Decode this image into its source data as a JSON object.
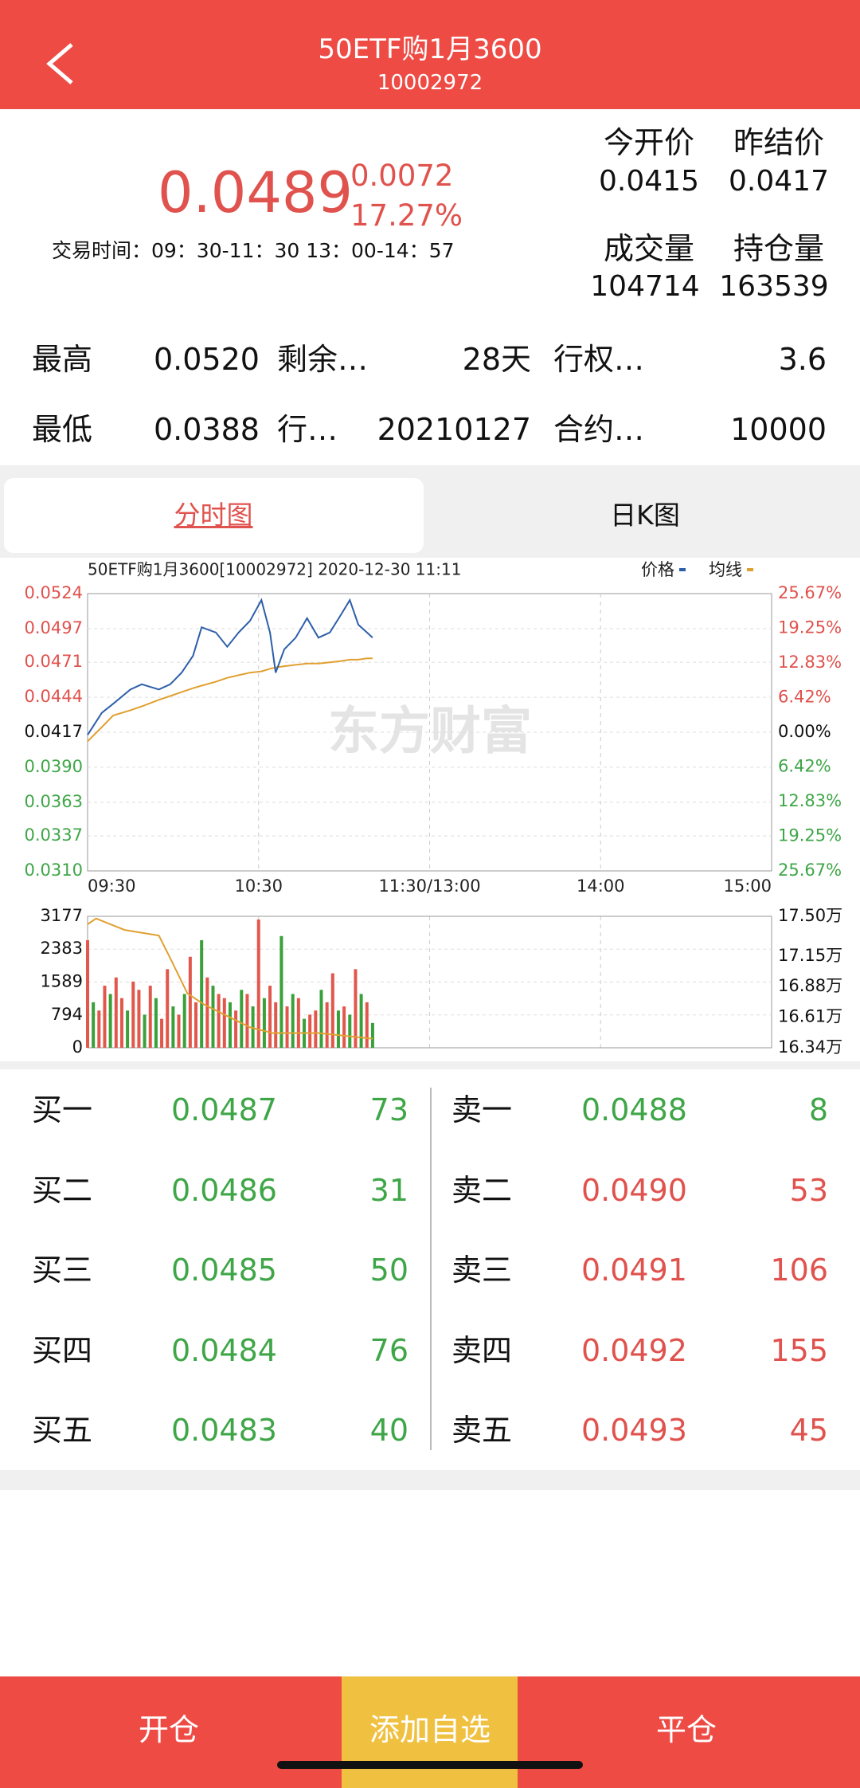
{
  "header": {
    "title": "50ETF购1月3600",
    "code": "10002972"
  },
  "quote": {
    "price": "0.0489",
    "change": "0.0072",
    "change_pct": "17.27%",
    "trade_time": "交易时间：09：30-11：30 13：00-14：57",
    "open_label": "今开价",
    "open": "0.0415",
    "prev_label": "昨结价",
    "prev": "0.0417",
    "volume_label": "成交量",
    "volume": "104714",
    "oi_label": "持仓量",
    "oi": "163539"
  },
  "stats": {
    "rows": [
      [
        "最高",
        "0.0520",
        "剩余…",
        "28天",
        "行权…",
        "3.6"
      ],
      [
        "最低",
        "0.0388",
        "行…",
        "20210127",
        "合约…",
        "10000"
      ]
    ]
  },
  "tabs": [
    "分时图",
    "日K图"
  ],
  "chart_data": [
    {
      "type": "line",
      "title": "50ETF购1月3600[10002972] 2020-12-30 11:11",
      "watermark": "东方财富",
      "xlim": [
        0,
        240
      ],
      "xticks": [
        {
          "value": 0,
          "label": "09:30"
        },
        {
          "value": 60,
          "label": "10:30"
        },
        {
          "value": 120,
          "label": "11:30/13:00"
        },
        {
          "value": 180,
          "label": "14:00"
        },
        {
          "value": 240,
          "label": "15:00"
        }
      ],
      "x": [
        0,
        5,
        9,
        15,
        19,
        25,
        29,
        33,
        37,
        40,
        45,
        49,
        53,
        57,
        61,
        64,
        66,
        69,
        73,
        77,
        81,
        85,
        89,
        92,
        95,
        98,
        100
      ],
      "series": [
        {
          "name": "价格",
          "color": "#2d5fa8",
          "values": [
            0.0415,
            0.0432,
            0.0439,
            0.045,
            0.0454,
            0.045,
            0.0454,
            0.0463,
            0.0476,
            0.0498,
            0.0494,
            0.0483,
            0.0494,
            0.0503,
            0.0519,
            0.0494,
            0.0463,
            0.0481,
            0.049,
            0.0505,
            0.049,
            0.0494,
            0.0508,
            0.0519,
            0.05,
            0.0494,
            0.049
          ]
        },
        {
          "name": "均线",
          "color": "#e0a030",
          "values": [
            0.041,
            0.0421,
            0.043,
            0.0434,
            0.0437,
            0.0442,
            0.0445,
            0.0448,
            0.0451,
            0.0453,
            0.0456,
            0.0459,
            0.0461,
            0.0463,
            0.0464,
            0.0466,
            0.0467,
            0.0468,
            0.0469,
            0.047,
            0.047,
            0.0471,
            0.0472,
            0.0473,
            0.0473,
            0.0474,
            0.0474
          ]
        }
      ],
      "ylim": [
        0.031,
        0.0524
      ],
      "yticks": [
        0.0524,
        0.0497,
        0.0471,
        0.0444,
        0.0417,
        {
          "value": 0.039,
          "label": "0.0390"
        },
        0.0363,
        0.0337,
        {
          "value": 0.031,
          "label": "0.0310"
        }
      ],
      "y2lim": [
        -25.67,
        25.67
      ],
      "y2ticks": [
        {
          "value": 25.67,
          "label": "25.67%"
        },
        {
          "value": 19.25,
          "label": "19.25%"
        },
        {
          "value": 12.83,
          "label": "12.83%"
        },
        {
          "value": 6.42,
          "label": "6.42%"
        },
        {
          "value": 0,
          "label": "0.00%"
        },
        {
          "value": -6.42,
          "label": "6.42%"
        },
        {
          "value": -12.83,
          "label": "12.83%"
        },
        {
          "value": -19.25,
          "label": "19.25%"
        },
        {
          "value": -25.67,
          "label": "25.67%"
        }
      ],
      "grid": true
    },
    {
      "type": "bar",
      "xlim": [
        0,
        240
      ],
      "x": [
        0,
        2,
        4,
        6,
        8,
        10,
        12,
        14,
        16,
        18,
        20,
        22,
        24,
        26,
        28,
        30,
        32,
        34,
        36,
        38,
        40,
        42,
        44,
        46,
        48,
        50,
        52,
        54,
        56,
        58,
        60,
        62,
        64,
        66,
        68,
        70,
        72,
        74,
        76,
        78,
        80,
        82,
        84,
        86,
        88,
        90,
        92,
        94,
        96,
        98,
        100
      ],
      "values": [
        2600,
        1100,
        900,
        1500,
        1300,
        1700,
        1200,
        900,
        1600,
        1400,
        800,
        1500,
        1200,
        700,
        1900,
        1000,
        800,
        1300,
        2200,
        1100,
        2600,
        1700,
        1500,
        1300,
        1200,
        1100,
        900,
        1400,
        1300,
        1000,
        3100,
        1200,
        1500,
        1100,
        2700,
        1000,
        1300,
        1200,
        700,
        800,
        900,
        1400,
        1100,
        1800,
        900,
        1000,
        800,
        1900,
        1300,
        1100,
        600
      ],
      "colors": [
        "#e2574c",
        "#3aa03a",
        "#e2574c",
        "#e2574c",
        "#3aa03a",
        "#e2574c",
        "#e2574c",
        "#3aa03a",
        "#e2574c",
        "#e2574c",
        "#3aa03a",
        "#e2574c",
        "#3aa03a",
        "#e2574c",
        "#e2574c",
        "#3aa03a",
        "#e2574c",
        "#3aa03a",
        "#e2574c",
        "#e2574c",
        "#3aa03a",
        "#e2574c",
        "#3aa03a",
        "#e2574c",
        "#e2574c",
        "#3aa03a",
        "#e2574c",
        "#3aa03a",
        "#e2574c",
        "#3aa03a",
        "#e2574c",
        "#3aa03a",
        "#e2574c",
        "#e2574c",
        "#3aa03a",
        "#e2574c",
        "#3aa03a",
        "#e2574c",
        "#3aa03a",
        "#e2574c",
        "#e2574c",
        "#3aa03a",
        "#e2574c",
        "#e2574c",
        "#3aa03a",
        "#e2574c",
        "#3aa03a",
        "#e2574c",
        "#3aa03a",
        "#e2574c",
        "#3aa03a"
      ],
      "ylim": [
        0,
        3177
      ],
      "yticks": [
        0,
        794,
        1589,
        2383,
        3177
      ],
      "y2lim": [
        163400,
        175000
      ],
      "y2ticks": [
        {
          "value": 175000,
          "label": "17.50万"
        },
        {
          "value": 171500,
          "label": "17.15万"
        },
        {
          "value": 168800,
          "label": "16.88万"
        },
        {
          "value": 166100,
          "label": "16.61万"
        },
        {
          "value": 163400,
          "label": "16.34万"
        }
      ],
      "line": {
        "axis": "y2",
        "color": "#e0a030",
        "x": [
          0,
          3,
          13,
          25,
          29,
          35,
          41,
          49,
          57,
          65,
          81,
          100
        ],
        "values": [
          174300,
          174800,
          173800,
          173300,
          171300,
          168200,
          167200,
          166200,
          165200,
          164700,
          164700,
          164200
        ]
      }
    }
  ],
  "order_book": {
    "bids": [
      [
        "买一",
        "0.0487",
        "73"
      ],
      [
        "买二",
        "0.0486",
        "31"
      ],
      [
        "买三",
        "0.0485",
        "50"
      ],
      [
        "买四",
        "0.0484",
        "76"
      ],
      [
        "买五",
        "0.0483",
        "40"
      ]
    ],
    "asks": [
      [
        "卖一",
        "0.0488",
        "8"
      ],
      [
        "卖二",
        "0.0490",
        "53"
      ],
      [
        "卖三",
        "0.0491",
        "106"
      ],
      [
        "卖四",
        "0.0492",
        "155"
      ],
      [
        "卖五",
        "0.0493",
        "45"
      ]
    ]
  },
  "footer": {
    "buttons": [
      "开仓",
      "添加自选",
      "平仓"
    ]
  }
}
